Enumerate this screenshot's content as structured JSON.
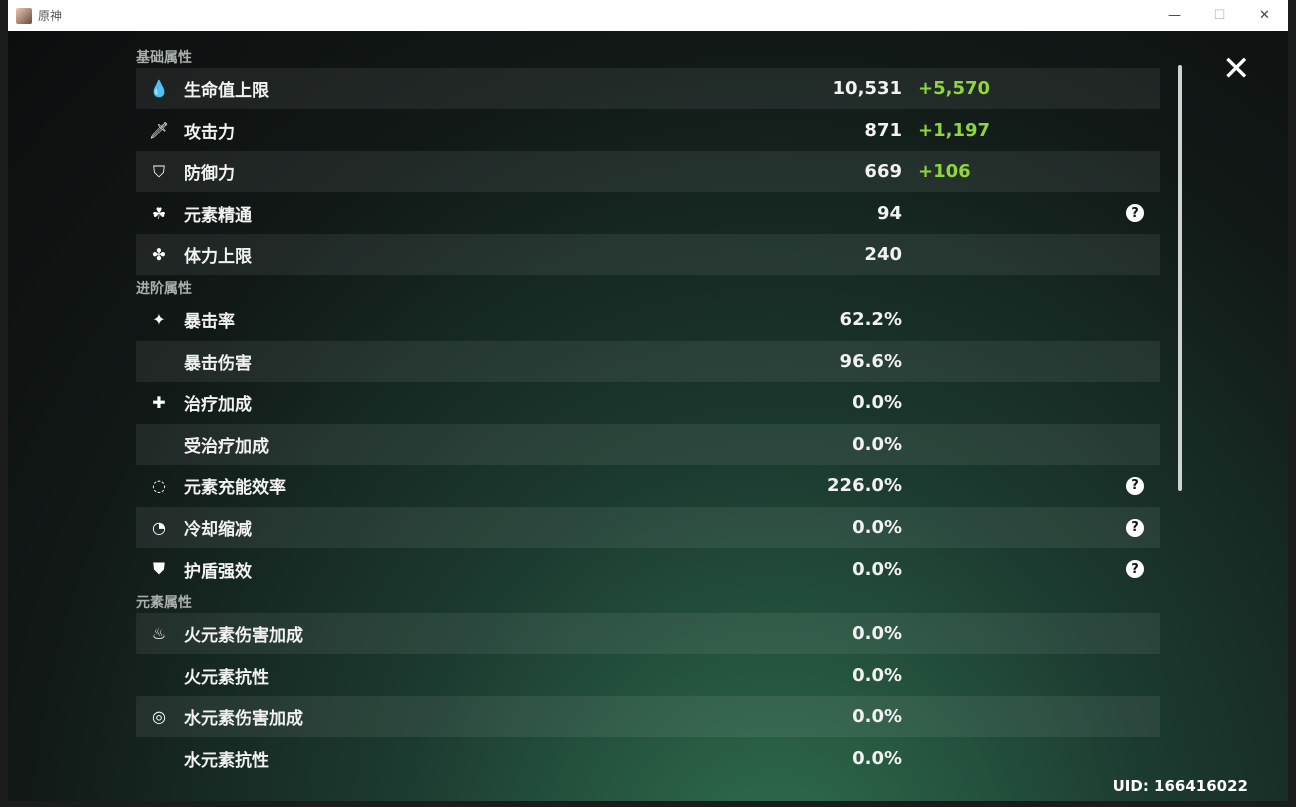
{
  "window": {
    "title": "原神",
    "minimize": "—",
    "maximize": "☐",
    "close": "✕"
  },
  "sections": [
    {
      "title": "基础属性",
      "rows": [
        {
          "icon": "hp-drop-icon",
          "glyph": "💧",
          "label": "生命值上限",
          "value": "10,531",
          "bonus": "+5,570"
        },
        {
          "icon": "sword-icon",
          "glyph": "🗡",
          "label": "攻击力",
          "value": "871",
          "bonus": "+1,197"
        },
        {
          "icon": "shield-icon",
          "glyph": "⛉",
          "label": "防御力",
          "value": "669",
          "bonus": "+106"
        },
        {
          "icon": "elemental-mastery-icon",
          "glyph": "☘",
          "label": "元素精通",
          "value": "94",
          "help": "?"
        },
        {
          "icon": "stamina-icon",
          "glyph": "✤",
          "label": "体力上限",
          "value": "240"
        }
      ]
    },
    {
      "title": "进阶属性",
      "rows": [
        {
          "icon": "crit-rate-icon",
          "glyph": "✦",
          "label": "暴击率",
          "value": "62.2%"
        },
        {
          "label": "暴击伤害",
          "value": "96.6%"
        },
        {
          "icon": "healing-plus-icon",
          "glyph": "✚",
          "label": "治疗加成",
          "value": "0.0%"
        },
        {
          "label": "受治疗加成",
          "value": "0.0%"
        },
        {
          "icon": "energy-recharge-icon",
          "glyph": "◌",
          "label": "元素充能效率",
          "value": "226.0%",
          "help": "?"
        },
        {
          "icon": "cooldown-icon",
          "glyph": "◔",
          "label": "冷却缩减",
          "value": "0.0%",
          "help": "?"
        },
        {
          "icon": "shield-strength-icon",
          "glyph": "⛊",
          "label": "护盾强效",
          "value": "0.0%",
          "help": "?"
        }
      ]
    },
    {
      "title": "元素属性",
      "rows": [
        {
          "icon": "pyro-icon",
          "glyph": "♨",
          "label": "火元素伤害加成",
          "value": "0.0%"
        },
        {
          "label": "火元素抗性",
          "value": "0.0%"
        },
        {
          "icon": "hydro-icon",
          "glyph": "◎",
          "label": "水元素伤害加成",
          "value": "0.0%"
        },
        {
          "label": "水元素抗性",
          "value": "0.0%"
        }
      ]
    }
  ],
  "uid": "UID: 166416022",
  "colors": {
    "bonus": "#8fd63a"
  }
}
